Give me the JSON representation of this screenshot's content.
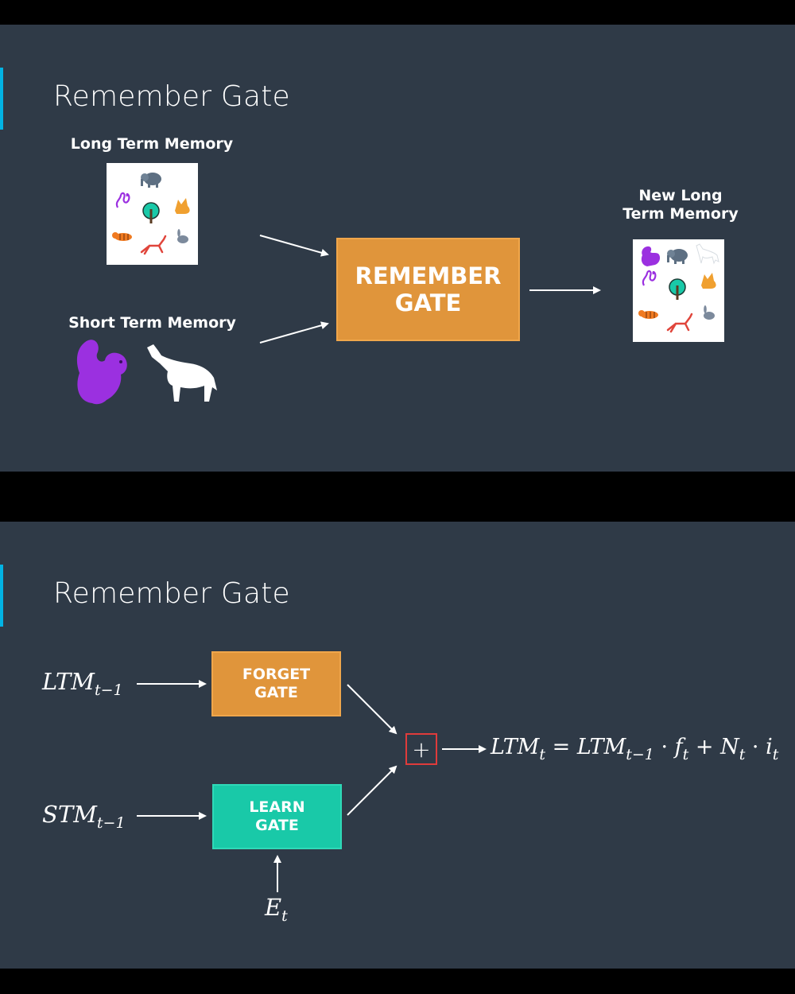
{
  "slide1": {
    "title": "Remember Gate",
    "ltm_label": "Long Term Memory",
    "stm_label": "Short Term Memory",
    "gate_label_line1": "REMEMBER",
    "gate_label_line2": "GATE",
    "new_ltm_line1": "New Long",
    "new_ltm_line2": "Term Memory"
  },
  "slide2": {
    "title": "Remember Gate",
    "forget_line1": "FORGET",
    "forget_line2": "GATE",
    "learn_line1": "LEARN",
    "learn_line2": "GATE",
    "ltm_input": "LTM",
    "ltm_input_sub": "t−1",
    "stm_input": "STM",
    "stm_input_sub": "t−1",
    "event_input": "E",
    "event_input_sub": "t",
    "plus": "+",
    "equation": {
      "lhs": "LTM",
      "lhs_sub": "t",
      "eq": " = ",
      "t1": "LTM",
      "t1_sub": "t−1",
      "dot1": " · ",
      "f": "f",
      "f_sub": "t",
      "plus": " + ",
      "n": "N",
      "n_sub": "t",
      "dot2": " · ",
      "i": "i",
      "i_sub": "t"
    }
  },
  "colors": {
    "background": "#2f3a47",
    "accent": "#02b3e4",
    "forget_gate": "#e0953b",
    "learn_gate": "#19c9a8",
    "plus_border": "#e03b3b",
    "squirrel": "#9b30e0",
    "wolf": "#ffffff"
  },
  "icons": [
    "elephant-icon",
    "snake-icon",
    "tree-icon",
    "fox-icon",
    "tiger-icon",
    "deer-icon",
    "rabbit-icon",
    "squirrel-icon",
    "wolf-icon"
  ]
}
